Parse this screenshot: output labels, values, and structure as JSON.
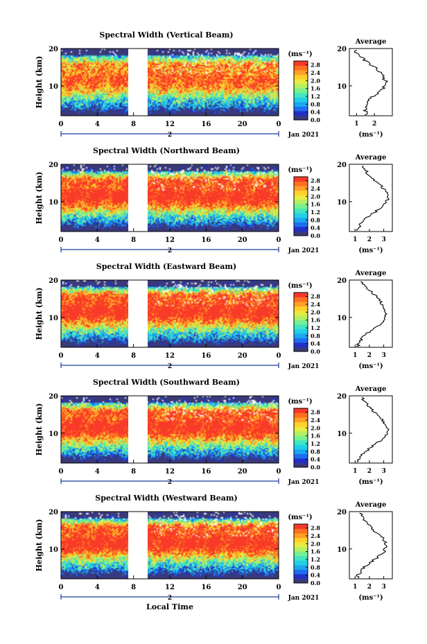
{
  "panels": [
    {
      "title": "Spectral Width (Vertical Beam)",
      "avg_label": "Average"
    },
    {
      "title": "Spectral Width (Northward Beam)",
      "avg_label": "Average"
    },
    {
      "title": "Spectral Width (Eastward Beam)",
      "avg_label": "Average"
    },
    {
      "title": "Spectral Width (Southward Beam)",
      "avg_label": "Average"
    },
    {
      "title": "Spectral Width (Westward Beam)",
      "avg_label": "Average"
    }
  ],
  "y_label": "Height (km)",
  "x_label": "Local Time",
  "units": "(ms⁻¹)",
  "avg_xlabel": "(ms⁻¹)",
  "date_label": "Jan 2021",
  "day_label": "2",
  "x_ticks": [
    "0",
    "4",
    "8",
    "12",
    "16",
    "20",
    "0"
  ],
  "y_ticks": [
    "20",
    "10"
  ],
  "colorbar_ticks": [
    "2.8",
    "2.4",
    "2.0",
    "1.6",
    "1.2",
    "0.8",
    "0.4",
    "0.0"
  ],
  "avg_x_ticks": [
    [
      "1",
      "2"
    ],
    [
      "1",
      "2",
      "3"
    ],
    [
      "1",
      "2",
      "3"
    ],
    [
      "1",
      "2",
      "3"
    ],
    [
      "1",
      "2",
      "3"
    ]
  ],
  "colors": {
    "scale": [
      "#3a3a7a",
      "#2030c8",
      "#1f6df0",
      "#1aa8f0",
      "#21d0e8",
      "#40e6c0",
      "#78f090",
      "#b4f064",
      "#e8ec40",
      "#ffd02a",
      "#ffa028",
      "#ff7020",
      "#f83a28"
    ],
    "line": "#000000"
  },
  "chart_data": [
    {
      "type": "heatmap",
      "title": "Spectral Width (Vertical Beam)",
      "xlabel": "Local Time",
      "ylabel": "Height (km)",
      "x_range": [
        0,
        24
      ],
      "y_range": [
        2,
        20
      ],
      "colorbar_range": [
        0.0,
        3.0
      ],
      "data_gap_hours": [
        7.5,
        9.6
      ],
      "profile": {
        "height_km": [
          3,
          5,
          7,
          9,
          11,
          13,
          15,
          17,
          19
        ],
        "mean": [
          1.5,
          1.5,
          1.9,
          2.4,
          2.7,
          2.4,
          2.0,
          1.4,
          1.0
        ]
      }
    },
    {
      "type": "heatmap",
      "title": "Spectral Width (Northward Beam)",
      "xlabel": "Local Time",
      "ylabel": "Height (km)",
      "x_range": [
        0,
        24
      ],
      "y_range": [
        2,
        20
      ],
      "colorbar_range": [
        0.0,
        3.0
      ],
      "data_gap_hours": [
        7.5,
        9.6
      ],
      "profile": {
        "height_km": [
          3,
          5,
          7,
          9,
          11,
          13,
          15,
          17,
          19
        ],
        "mean": [
          1.2,
          1.6,
          2.3,
          3.0,
          3.3,
          3.1,
          2.6,
          2.0,
          1.6
        ]
      }
    },
    {
      "type": "heatmap",
      "title": "Spectral Width (Eastward Beam)",
      "xlabel": "Local Time",
      "ylabel": "Height (km)",
      "x_range": [
        0,
        24
      ],
      "y_range": [
        2,
        20
      ],
      "colorbar_range": [
        0.0,
        3.0
      ],
      "data_gap_hours": [
        7.5,
        9.6
      ],
      "profile": {
        "height_km": [
          3,
          5,
          7,
          9,
          11,
          13,
          15,
          17,
          19
        ],
        "mean": [
          1.2,
          1.6,
          2.3,
          3.0,
          3.2,
          3.0,
          2.6,
          2.1,
          1.5
        ]
      }
    },
    {
      "type": "heatmap",
      "title": "Spectral Width (Southward Beam)",
      "xlabel": "Local Time",
      "ylabel": "Height (km)",
      "x_range": [
        0,
        24
      ],
      "y_range": [
        2,
        20
      ],
      "colorbar_range": [
        0.0,
        3.0
      ],
      "data_gap_hours": [
        7.5,
        9.6
      ],
      "profile": {
        "height_km": [
          3,
          5,
          7,
          9,
          11,
          13,
          15,
          17,
          19
        ],
        "mean": [
          1.2,
          1.7,
          2.4,
          3.1,
          3.3,
          3.0,
          2.5,
          2.0,
          1.5
        ]
      }
    },
    {
      "type": "heatmap",
      "title": "Spectral Width (Westward Beam)",
      "xlabel": "Local Time",
      "ylabel": "Height (km)",
      "x_range": [
        0,
        24
      ],
      "y_range": [
        2,
        20
      ],
      "colorbar_range": [
        0.0,
        3.0
      ],
      "data_gap_hours": [
        7.5,
        9.6
      ],
      "profile": {
        "height_km": [
          3,
          5,
          7,
          9,
          11,
          13,
          15,
          17,
          19
        ],
        "mean": [
          1.2,
          1.6,
          2.3,
          3.0,
          3.2,
          2.9,
          2.3,
          1.8,
          1.4
        ]
      }
    }
  ]
}
